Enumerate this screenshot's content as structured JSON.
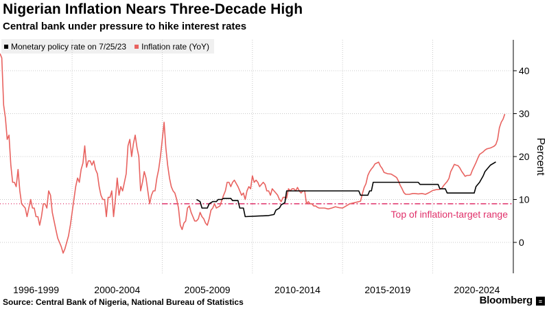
{
  "title": "Nigerian Inflation Nears Three-Decade High",
  "subtitle": "Central bank under pressure to hike interest rates",
  "source": "Source: Central Bank of Nigeria, National Bureau of Statistics",
  "brand": "Bloomberg",
  "brand_icon": "bloomberg-terminal-icon",
  "colors": {
    "policy": "#000000",
    "inflation": "#e8625f",
    "target": "#e0306a",
    "grid": "#c8c8c8"
  },
  "chart_data": {
    "type": "line",
    "ylabel": "Percent",
    "ylim": [
      -7,
      48
    ],
    "yticks": [
      0,
      10,
      20,
      30,
      40
    ],
    "xlim": [
      1996.0,
      2023.9
    ],
    "xtick_labels": [
      "1996-1999",
      "2000-2004",
      "2005-2009",
      "2010-2014",
      "2015-2019",
      "2020-2024"
    ],
    "grid_positions": [
      2000.0,
      2005.0,
      2010.0,
      2015.0,
      2020.0
    ],
    "legend_position": "top-left",
    "series": [
      {
        "name": "Monetary policy rate on 7/25/23",
        "color": "#000000",
        "points": [
          [
            2006.9,
            10.0
          ],
          [
            2007.1,
            9.5
          ],
          [
            2007.2,
            8.0
          ],
          [
            2007.5,
            8.0
          ],
          [
            2007.6,
            9.0
          ],
          [
            2007.8,
            9.5
          ],
          [
            2008.0,
            9.5
          ],
          [
            2008.1,
            10.0
          ],
          [
            2008.3,
            10.0
          ],
          [
            2008.4,
            10.25
          ],
          [
            2008.8,
            10.25
          ],
          [
            2008.9,
            9.75
          ],
          [
            2009.2,
            9.75
          ],
          [
            2009.3,
            8.0
          ],
          [
            2009.5,
            8.0
          ],
          [
            2009.6,
            6.0
          ],
          [
            2010.9,
            6.25
          ],
          [
            2011.2,
            6.5
          ],
          [
            2011.3,
            7.5
          ],
          [
            2011.5,
            8.0
          ],
          [
            2011.6,
            8.75
          ],
          [
            2011.8,
            9.25
          ],
          [
            2011.9,
            12.0
          ],
          [
            2015.9,
            12.0
          ],
          [
            2016.0,
            11.0
          ],
          [
            2016.4,
            11.0
          ],
          [
            2016.5,
            12.0
          ],
          [
            2016.6,
            12.0
          ],
          [
            2016.7,
            14.0
          ],
          [
            2019.2,
            14.0
          ],
          [
            2019.3,
            13.5
          ],
          [
            2020.3,
            13.5
          ],
          [
            2020.4,
            12.5
          ],
          [
            2020.7,
            12.5
          ],
          [
            2020.8,
            11.5
          ],
          [
            2022.3,
            11.5
          ],
          [
            2022.4,
            13.0
          ],
          [
            2022.6,
            14.0
          ],
          [
            2022.8,
            15.5
          ],
          [
            2022.9,
            16.5
          ],
          [
            2023.2,
            18.0
          ],
          [
            2023.5,
            18.75
          ]
        ]
      },
      {
        "name": "Inflation rate (YoY)",
        "color": "#e8625f",
        "points": [
          [
            1996.0,
            44.0
          ],
          [
            1996.1,
            43.0
          ],
          [
            1996.2,
            32.0
          ],
          [
            1996.3,
            29.0
          ],
          [
            1996.4,
            24.0
          ],
          [
            1996.5,
            25.0
          ],
          [
            1996.6,
            18.0
          ],
          [
            1996.7,
            14.0
          ],
          [
            1996.8,
            14.0
          ],
          [
            1996.9,
            13.0
          ],
          [
            1997.0,
            17.0
          ],
          [
            1997.1,
            12.0
          ],
          [
            1997.2,
            9.0
          ],
          [
            1997.4,
            8.0
          ],
          [
            1997.5,
            6.0
          ],
          [
            1997.6,
            8.0
          ],
          [
            1997.7,
            10.0
          ],
          [
            1997.8,
            8.0
          ],
          [
            1997.9,
            8.0
          ],
          [
            1998.0,
            6.0
          ],
          [
            1998.1,
            6.0
          ],
          [
            1998.2,
            4.0
          ],
          [
            1998.3,
            6.0
          ],
          [
            1998.4,
            9.0
          ],
          [
            1998.5,
            9.0
          ],
          [
            1998.6,
            8.0
          ],
          [
            1998.7,
            12.0
          ],
          [
            1998.8,
            11.0
          ],
          [
            1998.9,
            7.0
          ],
          [
            1999.0,
            5.0
          ],
          [
            1999.1,
            3.0
          ],
          [
            1999.2,
            1.0
          ],
          [
            1999.3,
            0.0
          ],
          [
            1999.4,
            -1.0
          ],
          [
            1999.5,
            -2.5
          ],
          [
            1999.6,
            -1.5
          ],
          [
            1999.7,
            0.0
          ],
          [
            1999.8,
            1.5
          ],
          [
            1999.9,
            4.0
          ],
          [
            2000.0,
            7.0
          ],
          [
            2000.1,
            10.0
          ],
          [
            2000.2,
            13.0
          ],
          [
            2000.3,
            15.0
          ],
          [
            2000.4,
            14.0
          ],
          [
            2000.5,
            17.0
          ],
          [
            2000.6,
            18.5
          ],
          [
            2000.7,
            22.5
          ],
          [
            2000.8,
            17.5
          ],
          [
            2000.9,
            19.0
          ],
          [
            2001.0,
            19.0
          ],
          [
            2001.1,
            18.0
          ],
          [
            2001.2,
            19.0
          ],
          [
            2001.3,
            17.0
          ],
          [
            2001.4,
            16.0
          ],
          [
            2001.5,
            13.0
          ],
          [
            2001.6,
            11.0
          ],
          [
            2001.7,
            10.0
          ],
          [
            2001.8,
            10.0
          ],
          [
            2001.9,
            6.0
          ],
          [
            2002.0,
            10.5
          ],
          [
            2002.1,
            10.5
          ],
          [
            2002.2,
            12.0
          ],
          [
            2002.3,
            6.0
          ],
          [
            2002.4,
            10.0
          ],
          [
            2002.5,
            15.0
          ],
          [
            2002.6,
            11.0
          ],
          [
            2002.7,
            13.0
          ],
          [
            2002.8,
            12.0
          ],
          [
            2002.9,
            14.0
          ],
          [
            2003.0,
            16.0
          ],
          [
            2003.1,
            22.5
          ],
          [
            2003.2,
            24.0
          ],
          [
            2003.3,
            20.0
          ],
          [
            2003.4,
            23.0
          ],
          [
            2003.5,
            25.0
          ],
          [
            2003.6,
            22.0
          ],
          [
            2003.7,
            20.0
          ],
          [
            2003.8,
            12.0
          ],
          [
            2003.9,
            14.0
          ],
          [
            2004.0,
            16.5
          ],
          [
            2004.1,
            15.0
          ],
          [
            2004.2,
            12.0
          ],
          [
            2004.3,
            9.0
          ],
          [
            2004.4,
            11.0
          ],
          [
            2004.5,
            12.0
          ],
          [
            2004.6,
            12.0
          ],
          [
            2004.7,
            15.0
          ],
          [
            2004.8,
            17.0
          ],
          [
            2004.9,
            20.0
          ],
          [
            2005.0,
            24.0
          ],
          [
            2005.1,
            28.0
          ],
          [
            2005.2,
            22.0
          ],
          [
            2005.3,
            18.0
          ],
          [
            2005.4,
            15.0
          ],
          [
            2005.5,
            13.0
          ],
          [
            2005.6,
            12.0
          ],
          [
            2005.7,
            11.5
          ],
          [
            2005.8,
            10.0
          ],
          [
            2005.9,
            8.0
          ],
          [
            2006.0,
            4.0
          ],
          [
            2006.1,
            3.0
          ],
          [
            2006.2,
            4.5
          ],
          [
            2006.3,
            5.0
          ],
          [
            2006.4,
            8.0
          ],
          [
            2006.5,
            8.5
          ],
          [
            2006.6,
            7.0
          ],
          [
            2006.7,
            6.0
          ],
          [
            2006.8,
            5.0
          ],
          [
            2006.9,
            5.0
          ],
          [
            2007.0,
            5.5
          ],
          [
            2007.1,
            7.0
          ],
          [
            2007.2,
            6.0
          ],
          [
            2007.3,
            5.5
          ],
          [
            2007.4,
            4.5
          ],
          [
            2007.5,
            4.0
          ],
          [
            2007.6,
            5.5
          ],
          [
            2007.7,
            7.5
          ],
          [
            2007.8,
            8.0
          ],
          [
            2007.9,
            9.0
          ],
          [
            2008.0,
            8.0
          ],
          [
            2008.2,
            8.5
          ],
          [
            2008.4,
            11.0
          ],
          [
            2008.5,
            12.0
          ],
          [
            2008.6,
            14.0
          ],
          [
            2008.7,
            14.0
          ],
          [
            2008.8,
            13.0
          ],
          [
            2008.9,
            14.0
          ],
          [
            2009.0,
            14.5
          ],
          [
            2009.2,
            13.0
          ],
          [
            2009.4,
            11.0
          ],
          [
            2009.5,
            11.5
          ],
          [
            2009.6,
            10.0
          ],
          [
            2009.7,
            12.0
          ],
          [
            2009.8,
            13.0
          ],
          [
            2009.9,
            12.5
          ],
          [
            2010.0,
            15.5
          ],
          [
            2010.1,
            14.0
          ],
          [
            2010.2,
            14.5
          ],
          [
            2010.3,
            14.0
          ],
          [
            2010.4,
            13.0
          ],
          [
            2010.5,
            13.5
          ],
          [
            2010.6,
            14.0
          ],
          [
            2010.7,
            13.5
          ],
          [
            2010.8,
            12.0
          ],
          [
            2010.9,
            12.0
          ],
          [
            2011.0,
            11.0
          ],
          [
            2011.1,
            12.5
          ],
          [
            2011.2,
            12.0
          ],
          [
            2011.3,
            11.5
          ],
          [
            2011.4,
            11.0
          ],
          [
            2011.5,
            10.0
          ],
          [
            2011.6,
            9.5
          ],
          [
            2011.7,
            10.5
          ],
          [
            2011.8,
            10.5
          ],
          [
            2011.9,
            10.3
          ],
          [
            2012.0,
            12.5
          ],
          [
            2012.1,
            12.0
          ],
          [
            2012.2,
            12.5
          ],
          [
            2012.3,
            12.5
          ],
          [
            2012.4,
            12.0
          ],
          [
            2012.5,
            12.8
          ],
          [
            2012.6,
            12.0
          ],
          [
            2012.7,
            11.5
          ],
          [
            2012.8,
            12.0
          ],
          [
            2012.9,
            12.0
          ],
          [
            2013.0,
            9.0
          ],
          [
            2013.1,
            9.5
          ],
          [
            2013.2,
            9.0
          ],
          [
            2013.3,
            9.0
          ],
          [
            2013.4,
            8.5
          ],
          [
            2013.5,
            8.5
          ],
          [
            2013.6,
            8.2
          ],
          [
            2013.7,
            8.0
          ],
          [
            2013.8,
            8.0
          ],
          [
            2013.9,
            8.0
          ],
          [
            2014.0,
            8.0
          ],
          [
            2014.2,
            7.8
          ],
          [
            2014.4,
            8.0
          ],
          [
            2014.6,
            8.3
          ],
          [
            2014.8,
            8.1
          ],
          [
            2015.0,
            8.0
          ],
          [
            2015.2,
            8.5
          ],
          [
            2015.4,
            9.0
          ],
          [
            2015.6,
            9.2
          ],
          [
            2015.8,
            9.4
          ],
          [
            2016.0,
            9.6
          ],
          [
            2016.1,
            11.4
          ],
          [
            2016.2,
            12.8
          ],
          [
            2016.3,
            13.7
          ],
          [
            2016.4,
            15.6
          ],
          [
            2016.5,
            16.5
          ],
          [
            2016.6,
            17.1
          ],
          [
            2016.7,
            17.6
          ],
          [
            2016.8,
            18.3
          ],
          [
            2016.9,
            18.5
          ],
          [
            2017.0,
            18.7
          ],
          [
            2017.1,
            17.8
          ],
          [
            2017.2,
            17.2
          ],
          [
            2017.3,
            16.3
          ],
          [
            2017.5,
            16.0
          ],
          [
            2017.7,
            15.9
          ],
          [
            2017.9,
            15.4
          ],
          [
            2018.0,
            15.1
          ],
          [
            2018.1,
            14.3
          ],
          [
            2018.2,
            13.3
          ],
          [
            2018.3,
            12.5
          ],
          [
            2018.4,
            11.6
          ],
          [
            2018.5,
            11.2
          ],
          [
            2018.7,
            11.2
          ],
          [
            2018.9,
            11.4
          ],
          [
            2019.0,
            11.4
          ],
          [
            2019.2,
            11.3
          ],
          [
            2019.4,
            11.4
          ],
          [
            2019.6,
            11.2
          ],
          [
            2019.8,
            11.6
          ],
          [
            2020.0,
            12.1
          ],
          [
            2020.1,
            12.2
          ],
          [
            2020.2,
            12.3
          ],
          [
            2020.3,
            12.3
          ],
          [
            2020.4,
            12.4
          ],
          [
            2020.5,
            12.6
          ],
          [
            2020.6,
            13.2
          ],
          [
            2020.7,
            13.7
          ],
          [
            2020.8,
            14.2
          ],
          [
            2020.9,
            14.9
          ],
          [
            2021.0,
            16.5
          ],
          [
            2021.1,
            17.3
          ],
          [
            2021.2,
            18.2
          ],
          [
            2021.3,
            18.0
          ],
          [
            2021.4,
            17.9
          ],
          [
            2021.5,
            17.4
          ],
          [
            2021.6,
            16.6
          ],
          [
            2021.7,
            16.0
          ],
          [
            2021.8,
            15.4
          ],
          [
            2021.9,
            15.6
          ],
          [
            2022.0,
            15.6
          ],
          [
            2022.1,
            15.7
          ],
          [
            2022.2,
            16.8
          ],
          [
            2022.3,
            17.7
          ],
          [
            2022.4,
            18.6
          ],
          [
            2022.5,
            19.6
          ],
          [
            2022.6,
            20.5
          ],
          [
            2022.7,
            20.8
          ],
          [
            2022.8,
            21.1
          ],
          [
            2022.9,
            21.5
          ],
          [
            2023.0,
            21.8
          ],
          [
            2023.1,
            21.9
          ],
          [
            2023.2,
            22.0
          ],
          [
            2023.3,
            22.2
          ],
          [
            2023.4,
            22.4
          ],
          [
            2023.5,
            22.8
          ],
          [
            2023.6,
            24.0
          ],
          [
            2023.7,
            26.7
          ],
          [
            2023.8,
            28.0
          ],
          [
            2023.9,
            28.7
          ],
          [
            2024.0,
            29.9
          ]
        ]
      }
    ],
    "annotations": [
      {
        "text": "Top of inflation-target range",
        "value": 9,
        "style": "dash-dot",
        "extent": [
          2005.0,
          2024.0
        ],
        "dotted_extent": [
          1996.0,
          2005.0
        ]
      }
    ]
  }
}
